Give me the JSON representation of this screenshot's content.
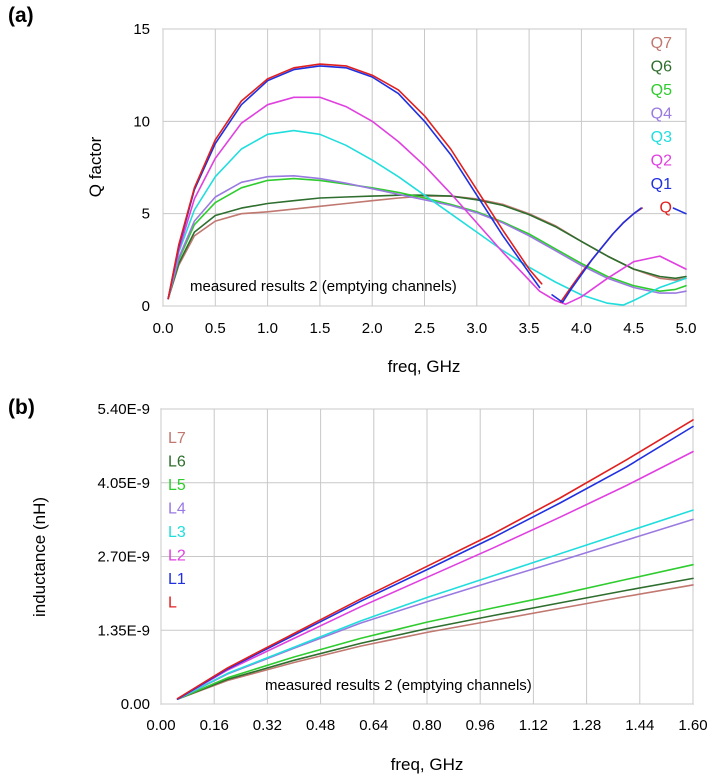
{
  "chart_data": [
    {
      "type": "line",
      "panel_label": "(a)",
      "xlabel": "freq, GHz",
      "ylabel": "Q factor",
      "xlim": [
        0,
        5
      ],
      "ylim": [
        0,
        15
      ],
      "x_ticks": [
        "0.0",
        "0.5",
        "1.0",
        "1.5",
        "2.0",
        "2.5",
        "3.0",
        "3.5",
        "4.0",
        "4.5",
        "5.0"
      ],
      "y_ticks": [
        "0",
        "5",
        "10",
        "15"
      ],
      "grid": true,
      "legend_position": "top-right",
      "annotation": "measured results 2 (emptying channels)",
      "series": [
        {
          "name": "Q7",
          "color": "#c07870",
          "x": [
            0.05,
            0.15,
            0.3,
            0.5,
            0.75,
            1.0,
            1.25,
            1.5,
            1.75,
            2.0,
            2.25,
            2.5,
            2.75,
            3.0,
            3.25,
            3.5,
            3.75,
            4.0,
            4.25,
            4.5,
            4.75,
            4.9,
            5.0
          ],
          "y": [
            0.4,
            2.2,
            3.8,
            4.6,
            5.0,
            5.1,
            5.25,
            5.4,
            5.55,
            5.7,
            5.85,
            5.95,
            5.95,
            5.8,
            5.5,
            5.0,
            4.35,
            3.5,
            2.7,
            2.0,
            1.5,
            1.4,
            1.5
          ]
        },
        {
          "name": "Q6",
          "color": "#2e6e2e",
          "x": [
            0.05,
            0.15,
            0.3,
            0.5,
            0.75,
            1.0,
            1.25,
            1.5,
            1.75,
            2.0,
            2.25,
            2.5,
            2.75,
            3.0,
            3.25,
            3.5,
            3.75,
            4.0,
            4.25,
            4.5,
            4.75,
            4.9,
            5.0
          ],
          "y": [
            0.4,
            2.3,
            4.0,
            4.9,
            5.3,
            5.55,
            5.7,
            5.85,
            5.9,
            5.95,
            6.0,
            6.0,
            5.95,
            5.75,
            5.45,
            4.95,
            4.3,
            3.5,
            2.7,
            2.0,
            1.6,
            1.5,
            1.6
          ]
        },
        {
          "name": "Q5",
          "color": "#2ecc2e",
          "x": [
            0.05,
            0.15,
            0.3,
            0.5,
            0.75,
            1.0,
            1.25,
            1.5,
            1.75,
            2.0,
            2.25,
            2.5,
            2.75,
            3.0,
            3.25,
            3.5,
            3.75,
            4.0,
            4.25,
            4.5,
            4.75,
            4.9,
            5.0
          ],
          "y": [
            0.4,
            2.5,
            4.4,
            5.6,
            6.4,
            6.8,
            6.9,
            6.8,
            6.6,
            6.4,
            6.15,
            5.85,
            5.5,
            5.1,
            4.55,
            3.9,
            3.1,
            2.3,
            1.6,
            1.1,
            0.8,
            0.9,
            1.1
          ]
        },
        {
          "name": "Q4",
          "color": "#9a7ae0",
          "x": [
            0.05,
            0.15,
            0.3,
            0.5,
            0.75,
            1.0,
            1.25,
            1.5,
            1.75,
            2.0,
            2.25,
            2.5,
            2.75,
            3.0,
            3.25,
            3.5,
            3.75,
            4.0,
            4.25,
            4.5,
            4.75,
            4.9,
            5.0
          ],
          "y": [
            0.4,
            2.6,
            4.6,
            5.9,
            6.7,
            7.0,
            7.05,
            6.9,
            6.65,
            6.35,
            6.05,
            5.75,
            5.45,
            5.05,
            4.5,
            3.8,
            3.0,
            2.2,
            1.5,
            1.0,
            0.7,
            0.7,
            0.8
          ]
        },
        {
          "name": "Q3",
          "color": "#22dddd",
          "x": [
            0.05,
            0.15,
            0.3,
            0.5,
            0.75,
            1.0,
            1.25,
            1.5,
            1.75,
            2.0,
            2.25,
            2.5,
            2.75,
            3.0,
            3.25,
            3.5,
            3.75,
            4.0,
            4.25,
            4.4,
            4.5,
            4.75,
            5.0
          ],
          "y": [
            0.4,
            2.9,
            5.2,
            7.0,
            8.5,
            9.3,
            9.5,
            9.3,
            8.7,
            7.9,
            7.0,
            6.0,
            5.0,
            4.0,
            3.0,
            2.1,
            1.3,
            0.6,
            0.15,
            0.05,
            0.3,
            1.0,
            1.5
          ]
        },
        {
          "name": "Q2",
          "color": "#e040e0",
          "x": [
            0.05,
            0.15,
            0.3,
            0.5,
            0.75,
            1.0,
            1.25,
            1.5,
            1.75,
            2.0,
            2.25,
            2.5,
            2.75,
            3.0,
            3.25,
            3.5,
            3.6,
            3.75,
            3.85,
            4.0,
            4.25,
            4.5,
            4.75,
            5.0
          ],
          "y": [
            0.4,
            3.0,
            5.8,
            8.0,
            9.9,
            10.9,
            11.3,
            11.3,
            10.8,
            10.0,
            8.9,
            7.6,
            6.1,
            4.5,
            2.9,
            1.4,
            0.8,
            0.3,
            0.1,
            0.5,
            1.5,
            2.4,
            2.7,
            2.0
          ]
        },
        {
          "name": "Q1",
          "color": "#2030e0",
          "x": [
            0.05,
            0.15,
            0.3,
            0.5,
            0.75,
            1.0,
            1.25,
            1.5,
            1.75,
            2.0,
            2.25,
            2.5,
            2.75,
            3.0,
            3.25,
            3.5,
            3.6
          ],
          "y": [
            0.4,
            3.2,
            6.3,
            8.8,
            10.9,
            12.2,
            12.8,
            13.0,
            12.9,
            12.4,
            11.5,
            10.0,
            8.2,
            6.0,
            3.8,
            1.8,
            1.0
          ]
        },
        {
          "name": "Q",
          "color": "#e02020",
          "x": [
            0.05,
            0.15,
            0.3,
            0.5,
            0.75,
            1.0,
            1.25,
            1.5,
            1.75,
            2.0,
            2.25,
            2.5,
            2.75,
            3.0,
            3.25,
            3.5,
            3.62
          ],
          "y": [
            0.4,
            3.3,
            6.4,
            9.0,
            11.1,
            12.3,
            12.9,
            13.1,
            13.0,
            12.5,
            11.7,
            10.3,
            8.5,
            6.3,
            4.1,
            2.0,
            1.2
          ]
        },
        {
          "name": "",
          "color": "#e02020",
          "x": [
            3.8,
            3.9,
            4.0,
            4.1,
            4.2,
            4.3,
            4.4,
            4.5,
            4.58
          ],
          "y": [
            0.2,
            1.0,
            1.8,
            2.5,
            3.2,
            3.9,
            4.5,
            5.0,
            5.3
          ]
        },
        {
          "name": "",
          "color": "#2030e0",
          "x": [
            3.72,
            3.82,
            3.9,
            4.0,
            4.1,
            4.2,
            4.3,
            4.4,
            4.5,
            4.57
          ],
          "y": [
            0.6,
            0.2,
            0.9,
            1.7,
            2.5,
            3.2,
            3.9,
            4.5,
            5.0,
            5.3
          ]
        },
        {
          "name": "",
          "color": "#2030e0",
          "x": [
            4.88,
            5.0
          ],
          "y": [
            5.3,
            5.0
          ]
        }
      ]
    },
    {
      "type": "line",
      "panel_label": "(b)",
      "xlabel": "freq, GHz",
      "ylabel": "inductance (nH)",
      "xlim": [
        0,
        1.6
      ],
      "ylim": [
        0,
        5.4e-09
      ],
      "x_ticks": [
        "0.00",
        "0.16",
        "0.32",
        "0.48",
        "0.64",
        "0.80",
        "0.96",
        "1.12",
        "1.28",
        "1.44",
        "1.60"
      ],
      "y_ticks": [
        "0.00",
        "1.35E-9",
        "2.70E-9",
        "4.05E-9",
        "5.40E-9"
      ],
      "grid": true,
      "legend_position": "top-left",
      "annotation": "measured results 2 (emptying channels)",
      "series": [
        {
          "name": "L7",
          "color": "#c07870",
          "x": [
            0.05,
            0.2,
            0.4,
            0.6,
            0.8,
            1.0,
            1.2,
            1.4,
            1.6
          ],
          "y": [
            9e-11,
            4.3e-10,
            7.6e-10,
            1.06e-09,
            1.31e-09,
            1.53e-09,
            1.75e-09,
            1.97e-09,
            2.18e-09
          ]
        },
        {
          "name": "L6",
          "color": "#2e6e2e",
          "x": [
            0.05,
            0.2,
            0.4,
            0.6,
            0.8,
            1.0,
            1.2,
            1.4,
            1.6
          ],
          "y": [
            9e-11,
            4.5e-10,
            8e-10,
            1.11e-09,
            1.38e-09,
            1.62e-09,
            1.85e-09,
            2.08e-09,
            2.3e-09
          ]
        },
        {
          "name": "L5",
          "color": "#2ecc2e",
          "x": [
            0.05,
            0.2,
            0.4,
            0.6,
            0.8,
            1.0,
            1.2,
            1.4,
            1.6
          ],
          "y": [
            9e-11,
            4.8e-10,
            8.6e-10,
            1.2e-09,
            1.5e-09,
            1.76e-09,
            2.01e-09,
            2.28e-09,
            2.55e-09
          ]
        },
        {
          "name": "L4",
          "color": "#9a7ae0",
          "x": [
            0.05,
            0.2,
            0.4,
            0.6,
            0.8,
            1.0,
            1.2,
            1.4,
            1.6
          ],
          "y": [
            9e-11,
            5.5e-10,
            1.02e-09,
            1.48e-09,
            1.87e-09,
            2.25e-09,
            2.62e-09,
            3e-09,
            3.38e-09
          ]
        },
        {
          "name": "L3",
          "color": "#22dddd",
          "x": [
            0.05,
            0.2,
            0.4,
            0.6,
            0.8,
            1.0,
            1.2,
            1.4,
            1.6
          ],
          "y": [
            9e-11,
            5.6e-10,
            1.04e-09,
            1.52e-09,
            1.95e-09,
            2.35e-09,
            2.75e-09,
            3.15e-09,
            3.55e-09
          ]
        },
        {
          "name": "L2",
          "color": "#e040e0",
          "x": [
            0.05,
            0.2,
            0.4,
            0.6,
            0.8,
            1.0,
            1.2,
            1.4,
            1.6
          ],
          "y": [
            9e-11,
            6.2e-10,
            1.2e-09,
            1.78e-09,
            2.32e-09,
            2.86e-09,
            3.42e-09,
            4e-09,
            4.62e-09
          ]
        },
        {
          "name": "L1",
          "color": "#2030e0",
          "x": [
            0.05,
            0.2,
            0.4,
            0.6,
            0.8,
            1.0,
            1.2,
            1.4,
            1.6
          ],
          "y": [
            9e-11,
            6.4e-10,
            1.26e-09,
            1.88e-09,
            2.46e-09,
            3.05e-09,
            3.68e-09,
            4.34e-09,
            5.08e-09
          ]
        },
        {
          "name": "L",
          "color": "#e02020",
          "x": [
            0.05,
            0.2,
            0.4,
            0.6,
            0.8,
            1.0,
            1.2,
            1.4,
            1.6
          ],
          "y": [
            1e-10,
            6.6e-10,
            1.29e-09,
            1.92e-09,
            2.52e-09,
            3.12e-09,
            3.77e-09,
            4.47e-09,
            5.2e-09
          ]
        }
      ]
    }
  ]
}
